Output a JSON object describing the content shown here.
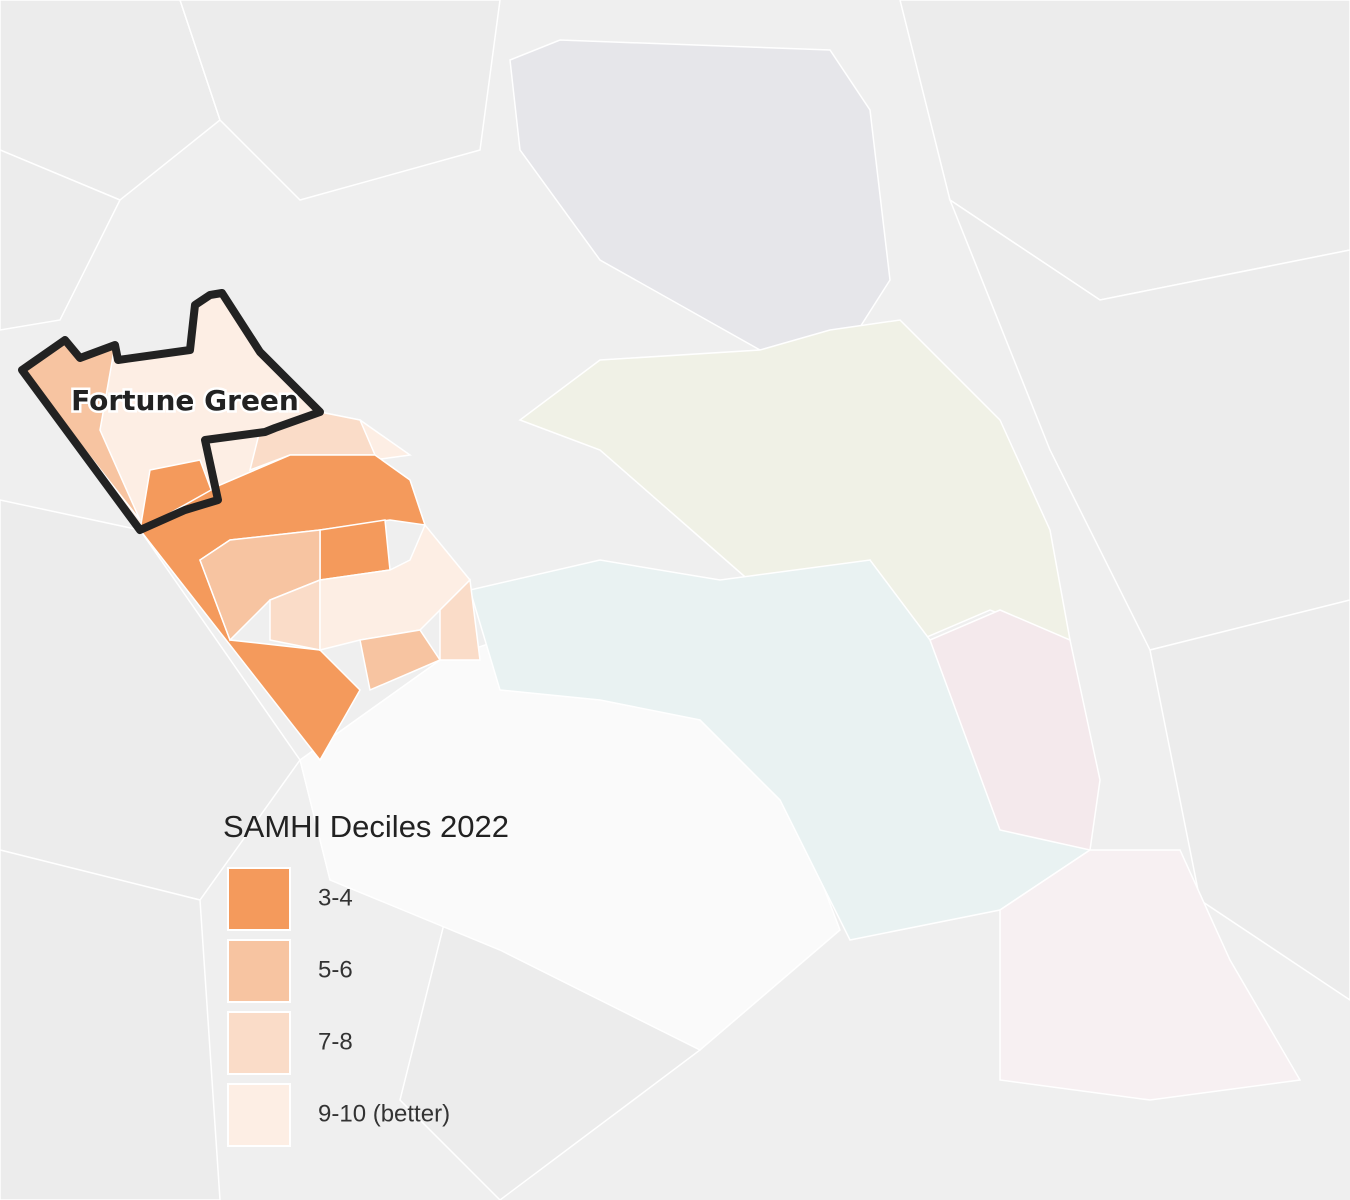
{
  "map": {
    "area_label": "Fortune Green"
  },
  "legend": {
    "title": "SAMHI Deciles 2022",
    "items": [
      {
        "label": "3-4",
        "color": "#f49a5c"
      },
      {
        "label": "5-6",
        "color": "#f7c4a1"
      },
      {
        "label": "7-8",
        "color": "#fadcc8"
      },
      {
        "label": "9-10 (better)",
        "color": "#fdeee4"
      }
    ]
  }
}
